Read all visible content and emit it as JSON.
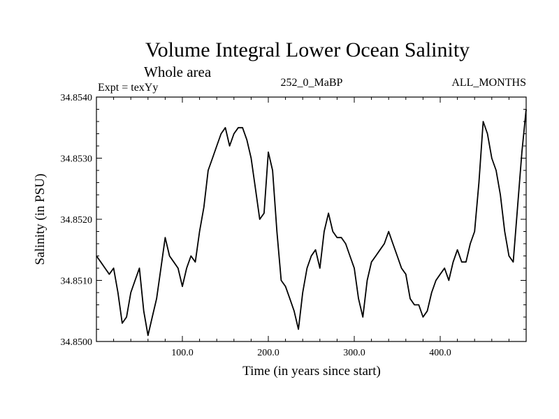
{
  "chart_data": {
    "type": "line",
    "title": "Volume Integral Lower Ocean Salinity",
    "subtitle": "Whole area",
    "left_label": "Expt = texYy",
    "center_label": "252_0_MaBP",
    "right_label": "ALL_MONTHS",
    "xlabel": "Time (in years since start)",
    "ylabel": "Salinity (in PSU)",
    "xlim": [
      0,
      500
    ],
    "ylim": [
      34.85,
      34.854
    ],
    "x_ticks": [
      100,
      200,
      300,
      400
    ],
    "x_tick_labels": [
      "100.0",
      "200.0",
      "300.0",
      "400.0"
    ],
    "y_ticks": [
      34.85,
      34.851,
      34.852,
      34.853,
      34.854
    ],
    "y_tick_labels": [
      "34.8500",
      "34.8510",
      "34.8520",
      "34.8530",
      "34.8540"
    ],
    "grid": false,
    "series": [
      {
        "x": [
          0,
          5,
          10,
          15,
          20,
          25,
          30,
          35,
          40,
          45,
          50,
          55,
          60,
          65,
          70,
          75,
          80,
          85,
          90,
          95,
          100,
          105,
          110,
          115,
          120,
          125,
          130,
          135,
          140,
          145,
          150,
          155,
          160,
          165,
          170,
          175,
          180,
          185,
          190,
          195,
          200,
          205,
          210,
          215,
          220,
          225,
          230,
          235,
          240,
          245,
          250,
          255,
          260,
          265,
          270,
          275,
          280,
          285,
          290,
          295,
          300,
          305,
          310,
          315,
          320,
          325,
          330,
          335,
          340,
          345,
          350,
          355,
          360,
          365,
          370,
          375,
          380,
          385,
          390,
          395,
          400,
          405,
          410,
          415,
          420,
          425,
          430,
          435,
          440,
          445,
          450,
          455,
          460,
          465,
          470,
          475,
          480,
          485,
          490,
          495,
          500
        ],
        "values": [
          34.8514,
          34.8513,
          34.8512,
          34.8511,
          34.8512,
          34.8508,
          34.8503,
          34.8504,
          34.8508,
          34.851,
          34.8512,
          34.8505,
          34.8501,
          34.8504,
          34.8507,
          34.8512,
          34.8517,
          34.8514,
          34.8513,
          34.8512,
          34.8509,
          34.8512,
          34.8514,
          34.8513,
          34.8518,
          34.8522,
          34.8528,
          34.853,
          34.8532,
          34.8534,
          34.8535,
          34.8532,
          34.8534,
          34.8535,
          34.8535,
          34.8533,
          34.853,
          34.8525,
          34.852,
          34.8521,
          34.8531,
          34.8528,
          34.8518,
          34.851,
          34.8509,
          34.8507,
          34.8505,
          34.8502,
          34.8508,
          34.8512,
          34.8514,
          34.8515,
          34.8512,
          34.8518,
          34.8521,
          34.8518,
          34.8517,
          34.8517,
          34.8516,
          34.8514,
          34.8512,
          34.8507,
          34.8504,
          34.851,
          34.8513,
          34.8514,
          34.8515,
          34.8516,
          34.8518,
          34.8516,
          34.8514,
          34.8512,
          34.8511,
          34.8507,
          34.8506,
          34.8506,
          34.8504,
          34.8505,
          34.8508,
          34.851,
          34.8511,
          34.8512,
          34.851,
          34.8513,
          34.8515,
          34.8513,
          34.8513,
          34.8516,
          34.8518,
          34.8526,
          34.8536,
          34.8534,
          34.853,
          34.8528,
          34.8524,
          34.8518,
          34.8514,
          34.8513,
          34.8522,
          34.8531,
          34.8538
        ]
      }
    ]
  }
}
